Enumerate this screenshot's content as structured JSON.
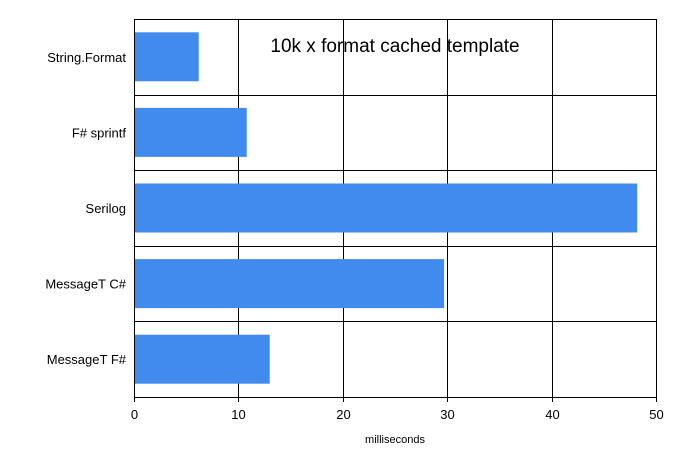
{
  "chart_data": {
    "type": "bar",
    "orientation": "horizontal",
    "title": "10k x format cached template",
    "xlabel": "milliseconds",
    "ylabel": "",
    "categories": [
      "String.Format",
      "F# sprintf",
      "Serilog",
      "MessageT C#",
      "MessageT F#"
    ],
    "values": [
      6.2,
      10.8,
      48.2,
      29.7,
      13.0
    ],
    "xlim": [
      0,
      50
    ],
    "xticks": [
      0,
      10,
      20,
      30,
      40,
      50
    ],
    "grid": true,
    "legend": "none",
    "colors": {
      "bar": "#418BEE",
      "grid": "#000000",
      "background": "#FFFFFF"
    }
  }
}
